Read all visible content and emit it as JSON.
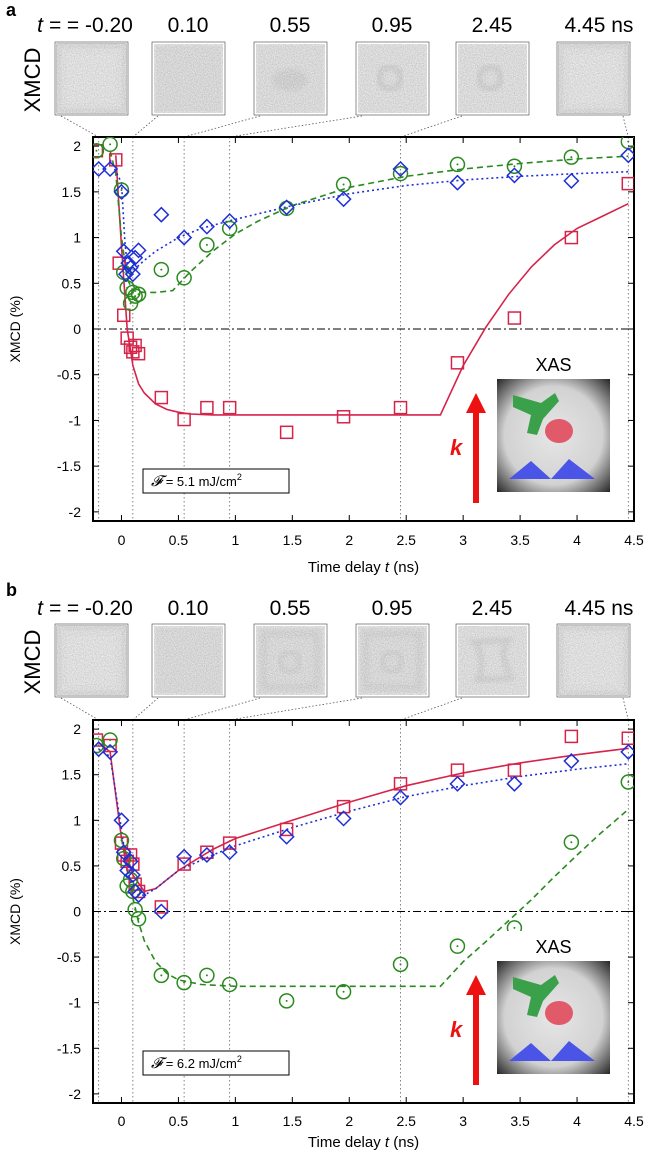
{
  "chart_data": [
    {
      "panel_label": "a",
      "type": "scatter",
      "side_label": "XMCD",
      "time_prefix": "t = ",
      "time_labels": [
        "-0.20",
        "0.10",
        "0.55",
        "0.95",
        "2.45",
        "4.45 ns"
      ],
      "time_values": [
        -0.2,
        0.1,
        0.55,
        0.95,
        2.45,
        4.45
      ],
      "xlabel_main": "Time delay ",
      "xlabel_var": "t",
      "xlabel_unit": " (ns)",
      "ylabel": "XMCD (%)",
      "xlim": [
        -0.25,
        4.5
      ],
      "ylim": [
        -2.1,
        2.1
      ],
      "x_ticks": [
        "0",
        "0.5",
        "1",
        "1.5",
        "2",
        "2.5",
        "3",
        "3.5",
        "4",
        "4.5"
      ],
      "x_tick_values": [
        0,
        0.5,
        1,
        1.5,
        2,
        2.5,
        3,
        3.5,
        4,
        4.5
      ],
      "y_ticks": [
        "2",
        "1.5",
        "1",
        "0.5",
        "0",
        "-0.5",
        "-1",
        "-1.5",
        "-2"
      ],
      "y_tick_values": [
        2,
        1.5,
        1,
        0.5,
        0,
        -0.5,
        -1,
        -1.5,
        -2
      ],
      "fluence_symbol": "𝓕",
      "fluence_text": " = 5.1 mJ/cm",
      "fluence_exp": "2",
      "inset_title": "XAS",
      "inset_arrow_label": "k",
      "series": [
        {
          "marker": "square",
          "color": "#d6234a",
          "line": "solid",
          "x": [
            -0.22,
            -0.05,
            -0.02,
            0.02,
            0.05,
            0.08,
            0.1,
            0.12,
            0.15,
            0.35,
            0.55,
            0.75,
            0.95,
            1.45,
            1.95,
            2.45,
            2.95,
            3.45,
            3.95,
            4.45
          ],
          "y": [
            1.95,
            1.85,
            0.72,
            0.15,
            -0.1,
            -0.2,
            -0.25,
            -0.18,
            -0.27,
            -0.75,
            -0.99,
            -0.86,
            -0.86,
            -1.13,
            -0.96,
            -0.86,
            -0.37,
            0.12,
            1.0,
            1.59
          ],
          "fit_x": [
            -0.05,
            0.0,
            0.05,
            0.1,
            0.15,
            0.2,
            0.3,
            0.4,
            0.5,
            0.6,
            0.8,
            1.0,
            1.5,
            2.0,
            2.5,
            2.8,
            3.0,
            3.2,
            3.4,
            3.6,
            3.8,
            4.0,
            4.2,
            4.45
          ],
          "fit_y": [
            1.9,
            0.9,
            0.0,
            -0.4,
            -0.6,
            -0.7,
            -0.82,
            -0.88,
            -0.91,
            -0.93,
            -0.94,
            -0.94,
            -0.94,
            -0.94,
            -0.94,
            -0.94,
            -0.4,
            0.02,
            0.38,
            0.68,
            0.92,
            1.1,
            1.22,
            1.37
          ]
        },
        {
          "marker": "circle",
          "color": "#2a8a1f",
          "line": "dashed",
          "x": [
            -0.22,
            -0.1,
            0.0,
            0.02,
            0.05,
            0.08,
            0.1,
            0.12,
            0.15,
            0.35,
            0.55,
            0.75,
            0.95,
            1.45,
            1.95,
            2.45,
            2.95,
            3.45,
            3.95,
            4.45
          ],
          "y": [
            1.95,
            2.02,
            1.52,
            0.62,
            0.45,
            0.28,
            0.4,
            0.36,
            0.38,
            0.65,
            0.56,
            0.92,
            1.1,
            1.32,
            1.58,
            1.7,
            1.8,
            1.78,
            1.88,
            2.05
          ],
          "fit_x": [
            -0.1,
            -0.05,
            0.0,
            0.05,
            0.1,
            0.2,
            0.3,
            0.45,
            0.6,
            0.8,
            1.0,
            1.2,
            1.5,
            2.0,
            2.5,
            3.0,
            3.5,
            4.0,
            4.45
          ],
          "fit_y": [
            1.95,
            1.7,
            1.0,
            0.55,
            0.42,
            0.4,
            0.4,
            0.42,
            0.62,
            0.85,
            1.04,
            1.18,
            1.35,
            1.55,
            1.67,
            1.75,
            1.81,
            1.86,
            1.89
          ]
        },
        {
          "marker": "diamond",
          "color": "#1f2fd6",
          "line": "dotted",
          "x": [
            -0.2,
            -0.1,
            0.0,
            0.02,
            0.04,
            0.06,
            0.08,
            0.1,
            0.12,
            0.15,
            0.35,
            0.55,
            0.75,
            0.95,
            1.45,
            1.95,
            2.45,
            2.95,
            3.45,
            3.95,
            4.45
          ],
          "y": [
            1.75,
            1.75,
            1.5,
            0.85,
            0.6,
            0.72,
            0.67,
            0.6,
            0.78,
            0.86,
            1.25,
            1.0,
            1.12,
            1.18,
            1.33,
            1.42,
            1.75,
            1.6,
            1.68,
            1.62,
            1.9
          ],
          "fit_x": [
            -0.1,
            0.0,
            0.03,
            0.05,
            0.08,
            0.12,
            0.2,
            0.3,
            0.5,
            0.7,
            1.0,
            1.5,
            2.0,
            2.5,
            3.0,
            3.5,
            4.0,
            4.45
          ],
          "fit_y": [
            1.85,
            1.6,
            0.95,
            0.7,
            0.62,
            0.66,
            0.75,
            0.85,
            1.0,
            1.1,
            1.2,
            1.35,
            1.48,
            1.57,
            1.63,
            1.67,
            1.7,
            1.72
          ]
        }
      ]
    },
    {
      "panel_label": "b",
      "type": "scatter",
      "side_label": "XMCD",
      "time_prefix": "t = ",
      "time_labels": [
        "-0.20",
        "0.10",
        "0.55",
        "0.95",
        "2.45",
        "4.45 ns"
      ],
      "time_values": [
        -0.2,
        0.1,
        0.55,
        0.95,
        2.45,
        4.45
      ],
      "xlabel_main": "Time delay ",
      "xlabel_var": "t",
      "xlabel_unit": " (ns)",
      "ylabel": "XMCD (%)",
      "xlim": [
        -0.25,
        4.5
      ],
      "ylim": [
        -2.1,
        2.1
      ],
      "x_ticks": [
        "0",
        "0.5",
        "1",
        "1.5",
        "2",
        "2.5",
        "3",
        "3.5",
        "4",
        "4.5"
      ],
      "x_tick_values": [
        0,
        0.5,
        1,
        1.5,
        2,
        2.5,
        3,
        3.5,
        4,
        4.5
      ],
      "y_ticks": [
        "2",
        "1.5",
        "1",
        "0.5",
        "0",
        "-0.5",
        "-1",
        "-1.5",
        "-2"
      ],
      "y_tick_values": [
        2,
        1.5,
        1,
        0.5,
        0,
        -0.5,
        -1,
        -1.5,
        -2
      ],
      "fluence_symbol": "𝓕",
      "fluence_text": " = 6.2 mJ/cm",
      "fluence_exp": "2",
      "inset_title": "XAS",
      "inset_arrow_label": "k",
      "series": [
        {
          "marker": "square",
          "color": "#d6234a",
          "line": "solid",
          "x": [
            -0.22,
            -0.1,
            0.0,
            0.02,
            0.05,
            0.08,
            0.1,
            0.12,
            0.15,
            0.35,
            0.55,
            0.75,
            0.95,
            1.45,
            1.95,
            2.45,
            2.95,
            3.45,
            3.95,
            4.45
          ],
          "y": [
            1.88,
            1.82,
            0.75,
            0.62,
            0.55,
            0.62,
            0.52,
            0.3,
            0.22,
            0.05,
            0.52,
            0.65,
            0.75,
            0.9,
            1.15,
            1.4,
            1.55,
            1.55,
            1.92,
            1.9
          ],
          "fit_x": [
            -0.2,
            -0.1,
            0.0,
            0.1,
            0.2,
            0.3,
            0.5,
            0.8,
            1.0,
            1.5,
            2.0,
            2.5,
            3.0,
            3.5,
            4.0,
            4.45
          ],
          "fit_y": [
            1.85,
            1.75,
            0.8,
            0.4,
            0.22,
            0.25,
            0.45,
            0.68,
            0.8,
            1.0,
            1.2,
            1.38,
            1.52,
            1.63,
            1.72,
            1.79
          ]
        },
        {
          "marker": "circle",
          "color": "#2a8a1f",
          "line": "dashed",
          "x": [
            -0.22,
            -0.1,
            0.0,
            0.02,
            0.05,
            0.08,
            0.1,
            0.12,
            0.15,
            0.35,
            0.55,
            0.75,
            0.95,
            1.45,
            1.95,
            2.45,
            2.95,
            3.45,
            3.95,
            4.45
          ],
          "y": [
            1.82,
            1.88,
            0.78,
            0.58,
            0.28,
            0.35,
            0.22,
            0.02,
            -0.08,
            -0.7,
            -0.78,
            -0.7,
            -0.8,
            -0.98,
            -0.88,
            -0.58,
            -0.38,
            -0.18,
            0.76,
            1.42
          ],
          "fit_x": [
            0.0,
            0.05,
            0.1,
            0.15,
            0.2,
            0.3,
            0.4,
            0.5,
            0.7,
            1.0,
            1.5,
            2.0,
            2.5,
            2.8,
            3.0,
            3.2,
            3.4,
            3.6,
            3.8,
            4.0,
            4.2,
            4.45
          ],
          "fit_y": [
            0.8,
            0.45,
            0.15,
            -0.12,
            -0.32,
            -0.55,
            -0.68,
            -0.75,
            -0.8,
            -0.82,
            -0.82,
            -0.82,
            -0.82,
            -0.82,
            -0.55,
            -0.33,
            -0.1,
            0.13,
            0.38,
            0.62,
            0.85,
            1.12
          ]
        },
        {
          "marker": "diamond",
          "color": "#1f2fd6",
          "line": "dotted",
          "x": [
            -0.2,
            -0.1,
            0.0,
            0.02,
            0.05,
            0.08,
            0.1,
            0.12,
            0.15,
            0.35,
            0.55,
            0.75,
            0.95,
            1.45,
            1.95,
            2.45,
            2.95,
            3.45,
            3.95,
            4.45
          ],
          "y": [
            1.78,
            1.75,
            1.0,
            0.65,
            0.45,
            0.55,
            0.4,
            0.22,
            0.18,
            0.0,
            0.6,
            0.62,
            0.65,
            0.82,
            1.02,
            1.25,
            1.4,
            1.4,
            1.65,
            1.75
          ],
          "fit_x": [
            -0.2,
            -0.1,
            0.0,
            0.05,
            0.1,
            0.15,
            0.2,
            0.3,
            0.5,
            0.8,
            1.0,
            1.5,
            2.0,
            2.5,
            3.0,
            3.5,
            4.0,
            4.45
          ],
          "fit_y": [
            1.78,
            1.7,
            0.9,
            0.45,
            0.25,
            0.18,
            0.18,
            0.25,
            0.45,
            0.62,
            0.72,
            0.92,
            1.1,
            1.26,
            1.38,
            1.48,
            1.56,
            1.62
          ]
        }
      ]
    }
  ]
}
